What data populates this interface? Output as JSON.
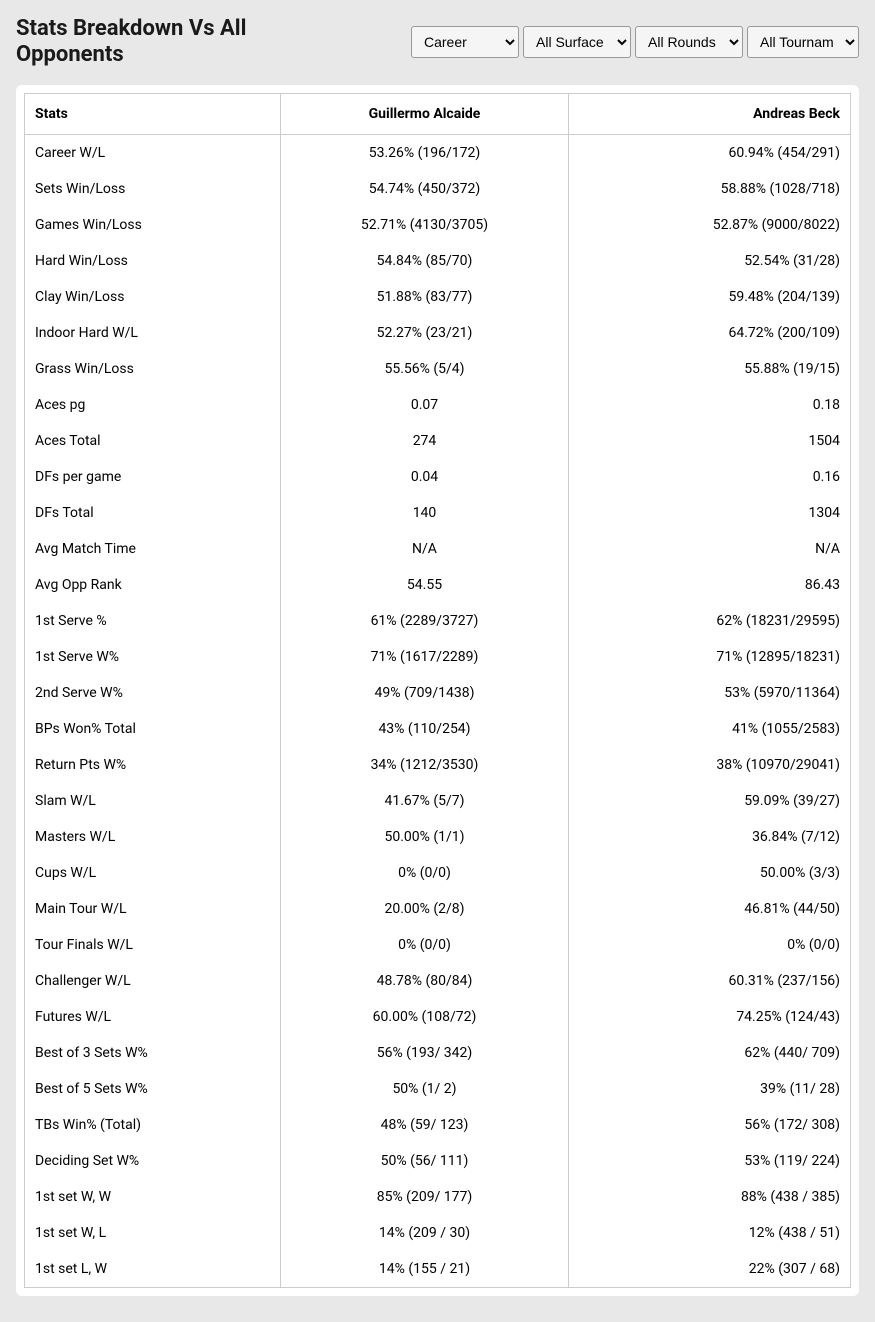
{
  "header": {
    "title": "Stats Breakdown Vs All Opponents"
  },
  "filters": {
    "period": "Career",
    "surface": "All Surface",
    "round": "All Rounds",
    "tournament": "All Tournam"
  },
  "table": {
    "columns": {
      "stats": "Stats",
      "player1": "Guillermo Alcaide",
      "player2": "Andreas Beck"
    },
    "rows": [
      {
        "stat": "Career W/L",
        "p1": "53.26% (196/172)",
        "p2": "60.94% (454/291)"
      },
      {
        "stat": "Sets Win/Loss",
        "p1": "54.74% (450/372)",
        "p2": "58.88% (1028/718)"
      },
      {
        "stat": "Games Win/Loss",
        "p1": "52.71% (4130/3705)",
        "p2": "52.87% (9000/8022)"
      },
      {
        "stat": "Hard Win/Loss",
        "p1": "54.84% (85/70)",
        "p2": "52.54% (31/28)"
      },
      {
        "stat": "Clay Win/Loss",
        "p1": "51.88% (83/77)",
        "p2": "59.48% (204/139)"
      },
      {
        "stat": "Indoor Hard W/L",
        "p1": "52.27% (23/21)",
        "p2": "64.72% (200/109)"
      },
      {
        "stat": "Grass Win/Loss",
        "p1": "55.56% (5/4)",
        "p2": "55.88% (19/15)"
      },
      {
        "stat": "Aces pg",
        "p1": "0.07",
        "p2": "0.18"
      },
      {
        "stat": "Aces Total",
        "p1": "274",
        "p2": "1504"
      },
      {
        "stat": "DFs per game",
        "p1": "0.04",
        "p2": "0.16"
      },
      {
        "stat": "DFs Total",
        "p1": "140",
        "p2": "1304"
      },
      {
        "stat": "Avg Match Time",
        "p1": "N/A",
        "p2": "N/A"
      },
      {
        "stat": "Avg Opp Rank",
        "p1": "54.55",
        "p2": "86.43"
      },
      {
        "stat": "1st Serve %",
        "p1": "61% (2289/3727)",
        "p2": "62% (18231/29595)"
      },
      {
        "stat": "1st Serve W%",
        "p1": "71% (1617/2289)",
        "p2": "71% (12895/18231)"
      },
      {
        "stat": "2nd Serve W%",
        "p1": "49% (709/1438)",
        "p2": "53% (5970/11364)"
      },
      {
        "stat": "BPs Won% Total",
        "p1": "43% (110/254)",
        "p2": "41% (1055/2583)"
      },
      {
        "stat": "Return Pts W%",
        "p1": "34% (1212/3530)",
        "p2": "38% (10970/29041)"
      },
      {
        "stat": "Slam W/L",
        "p1": "41.67% (5/7)",
        "p2": "59.09% (39/27)"
      },
      {
        "stat": "Masters W/L",
        "p1": "50.00% (1/1)",
        "p2": "36.84% (7/12)"
      },
      {
        "stat": "Cups W/L",
        "p1": "0% (0/0)",
        "p2": "50.00% (3/3)"
      },
      {
        "stat": "Main Tour W/L",
        "p1": "20.00% (2/8)",
        "p2": "46.81% (44/50)"
      },
      {
        "stat": "Tour Finals W/L",
        "p1": "0% (0/0)",
        "p2": "0% (0/0)"
      },
      {
        "stat": "Challenger W/L",
        "p1": "48.78% (80/84)",
        "p2": "60.31% (237/156)"
      },
      {
        "stat": "Futures W/L",
        "p1": "60.00% (108/72)",
        "p2": "74.25% (124/43)"
      },
      {
        "stat": "Best of 3 Sets W%",
        "p1": "56% (193/ 342)",
        "p2": "62% (440/ 709)"
      },
      {
        "stat": "Best of 5 Sets W%",
        "p1": "50% (1/ 2)",
        "p2": "39% (11/ 28)"
      },
      {
        "stat": "TBs Win% (Total)",
        "p1": "48% (59/ 123)",
        "p2": "56% (172/ 308)"
      },
      {
        "stat": "Deciding Set W%",
        "p1": "50% (56/ 111)",
        "p2": "53% (119/ 224)"
      },
      {
        "stat": "1st set W, W",
        "p1": "85% (209/ 177)",
        "p2": "88% (438 / 385)"
      },
      {
        "stat": "1st set W, L",
        "p1": "14% (209 / 30)",
        "p2": "12% (438 / 51)"
      },
      {
        "stat": "1st set L, W",
        "p1": "14% (155 / 21)",
        "p2": "22% (307 / 68)"
      }
    ]
  }
}
